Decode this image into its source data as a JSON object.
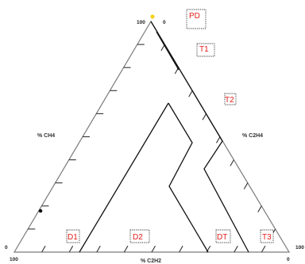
{
  "triangle": {
    "apex_left_value": "100",
    "apex_right_value": "0",
    "bottom_left_value": "100",
    "bottom_left_zero": "0",
    "bottom_right_value": "0",
    "bottom_right_hundred": "100"
  },
  "axes": {
    "left": "% CH4",
    "right": "% C2H4",
    "bottom": "% C2H2"
  },
  "zones": {
    "pd": "PD",
    "t1": "T1",
    "t2": "T2",
    "t3": "T3",
    "d1": "D1",
    "d2": "D2",
    "dt": "DT"
  },
  "colors": {
    "frame": "#7a7a7a",
    "boundary": "#111111",
    "zone_label": "#e0201b",
    "marker_apex": "#f2d21a",
    "marker_point": "#111111"
  }
}
